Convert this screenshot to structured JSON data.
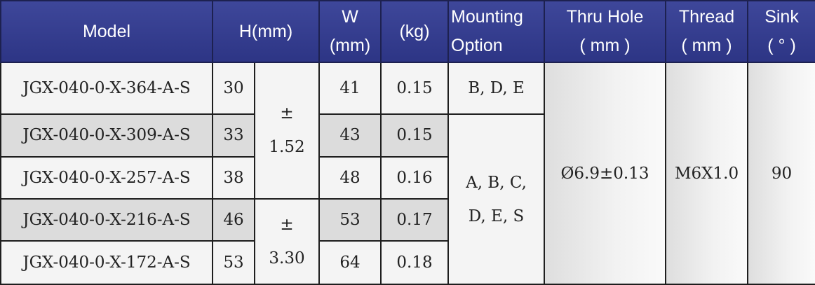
{
  "headers": {
    "model": "Model",
    "h_mm": "H(mm)",
    "w_line1": "W",
    "w_line2": "(mm)",
    "kg": "(kg)",
    "mounting_line1": "Mounting",
    "mounting_line2": "Option",
    "thru_hole_line1": "Thru Hole",
    "thru_hole_line2": "( mm )",
    "thread_line1": "Thread",
    "thread_line2": "( mm )",
    "sink_line1": "Sink",
    "sink_line2": "( ° )"
  },
  "rows": [
    {
      "model": "JGX-040-0-X-364-A-S",
      "h": "30",
      "w": "41",
      "kg": "0.15"
    },
    {
      "model": "JGX-040-0-X-309-A-S",
      "h": "33",
      "w": "43",
      "kg": "0.15"
    },
    {
      "model": "JGX-040-0-X-257-A-S",
      "h": "38",
      "w": "48",
      "kg": "0.16"
    },
    {
      "model": "JGX-040-0-X-216-A-S",
      "h": "46",
      "w": "53",
      "kg": "0.17"
    },
    {
      "model": "JGX-040-0-X-172-A-S",
      "h": "53",
      "w": "64",
      "kg": "0.18"
    }
  ],
  "tolerance_1": {
    "line1": "±",
    "line2": "1.52"
  },
  "tolerance_2": {
    "line1": "±",
    "line2": "3.30"
  },
  "mounting_1": "B, D, E",
  "mounting_2": {
    "line1": "A, B, C,",
    "line2": "D, E, S"
  },
  "thru_hole": "Ø6.9±0.13",
  "thread": "M6X1.0",
  "sink": "90"
}
